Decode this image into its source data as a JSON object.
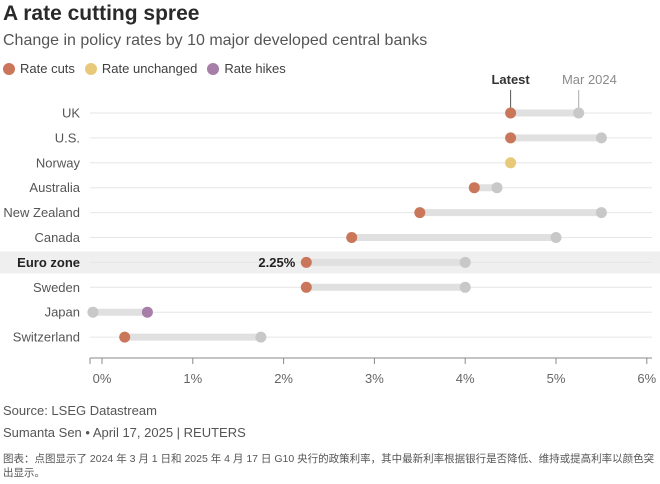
{
  "header": {
    "title": "A rate cutting spree",
    "subtitle": "Change in policy rates by 10 major developed central banks"
  },
  "legend": [
    {
      "label": "Rate cuts",
      "color": "#c9765a"
    },
    {
      "label": "Rate unchanged",
      "color": "#e8c97a"
    },
    {
      "label": "Rate hikes",
      "color": "#a77ea8"
    }
  ],
  "colors": {
    "cut": "#c9765a",
    "unchanged": "#e8c97a",
    "hike": "#a77ea8",
    "previous": "#c8c8c8",
    "connector": "#e0e0e0",
    "highlight_row": "#efefef"
  },
  "chart_data": {
    "type": "dot-range",
    "title": "A rate cutting spree",
    "subtitle": "Change in policy rates by 10 major developed central banks",
    "series_labels": {
      "latest": "Latest",
      "previous": "Mar 2024"
    },
    "categories": [
      "UK",
      "U.S.",
      "Norway",
      "Australia",
      "New Zealand",
      "Canada",
      "Euro zone",
      "Sweden",
      "Japan",
      "Switzerland"
    ],
    "series": [
      {
        "name": "Latest",
        "values": [
          4.5,
          4.5,
          4.5,
          4.1,
          3.5,
          2.75,
          2.25,
          2.25,
          0.5,
          0.25
        ]
      },
      {
        "name": "Mar 2024",
        "values": [
          5.25,
          5.5,
          4.5,
          4.35,
          5.5,
          5.0,
          4.0,
          4.0,
          -0.1,
          1.75
        ]
      }
    ],
    "direction": [
      "cut",
      "cut",
      "unchanged",
      "cut",
      "cut",
      "cut",
      "cut",
      "cut",
      "hike",
      "cut"
    ],
    "highlight": {
      "category": "Euro zone",
      "label": "2.25%"
    },
    "x_ticks": [
      "0%",
      "1%",
      "2%",
      "3%",
      "4%",
      "5%",
      "6%"
    ],
    "xlim": [
      -0.15,
      6
    ],
    "grid": "horizontal row lines"
  },
  "footer": {
    "source": "Source: LSEG Datastream",
    "credit": "Sumanta Sen • April 17, 2025 | REUTERS",
    "caption": "图表：点图显示了 2024 年 3 月 1 日和 2025 年 4 月 17 日 G10 央行的政策利率，其中最新利率根据银行是否降低、维持或提高利率以颜色突出显示。"
  }
}
